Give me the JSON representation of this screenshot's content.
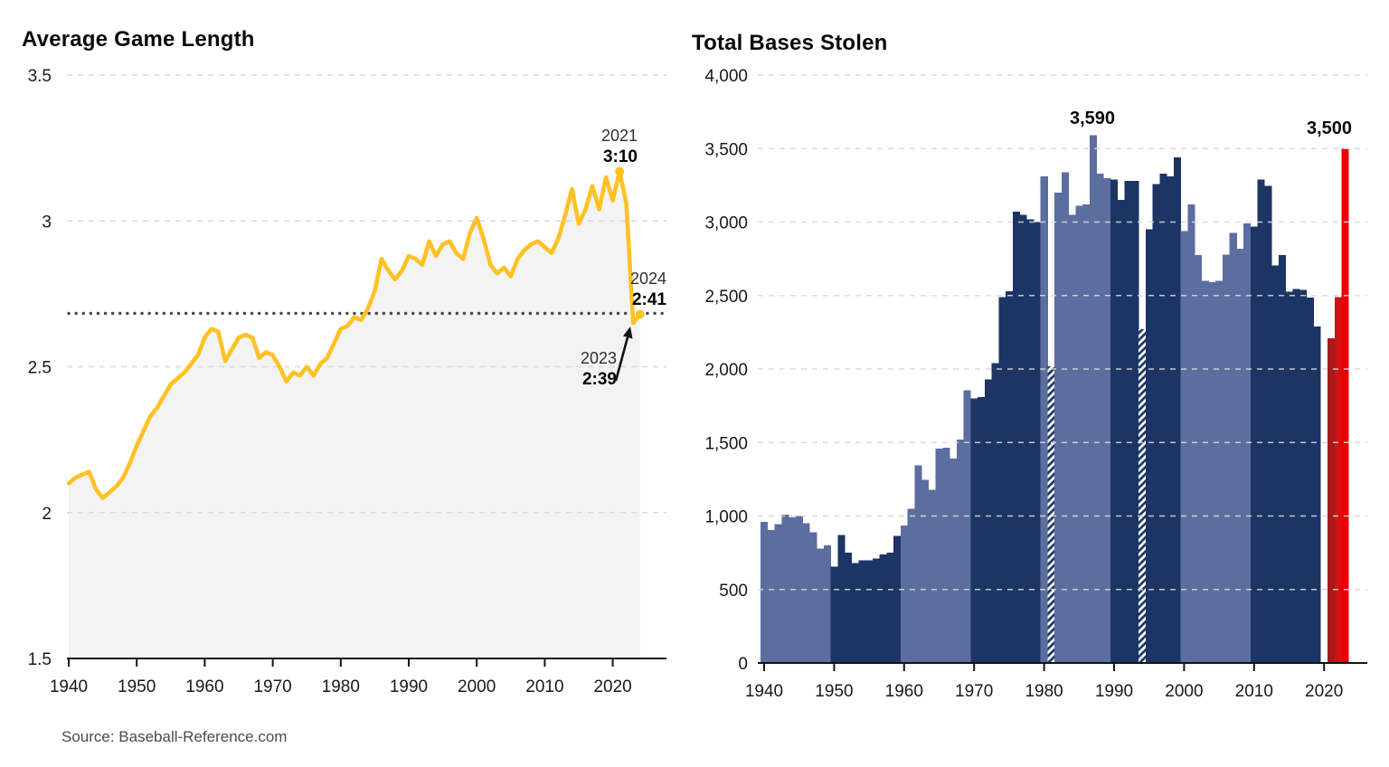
{
  "page": {
    "source": "Source: Baseball-Reference.com",
    "background": "#ffffff",
    "grid_color": "#d9d9d9",
    "axis_color": "#141414",
    "tick_label_color": "#191919"
  },
  "chart_data": [
    {
      "type": "line",
      "title": "Average Game Length",
      "unit": "hours",
      "ylim": [
        1.5,
        3.5
      ],
      "x": [
        1940,
        1941,
        1942,
        1943,
        1944,
        1945,
        1946,
        1947,
        1948,
        1949,
        1950,
        1951,
        1952,
        1953,
        1954,
        1955,
        1956,
        1957,
        1958,
        1959,
        1960,
        1961,
        1962,
        1963,
        1964,
        1965,
        1966,
        1967,
        1968,
        1969,
        1970,
        1971,
        1972,
        1973,
        1974,
        1975,
        1976,
        1977,
        1978,
        1979,
        1980,
        1981,
        1982,
        1983,
        1984,
        1985,
        1986,
        1987,
        1988,
        1989,
        1990,
        1991,
        1992,
        1993,
        1994,
        1995,
        1996,
        1997,
        1998,
        1999,
        2000,
        2001,
        2002,
        2003,
        2004,
        2005,
        2006,
        2007,
        2008,
        2009,
        2010,
        2011,
        2012,
        2013,
        2014,
        2015,
        2016,
        2017,
        2018,
        2019,
        2020,
        2021,
        2022,
        2023,
        2024
      ],
      "y": [
        2.1,
        2.12,
        2.13,
        2.14,
        2.08,
        2.05,
        2.07,
        2.09,
        2.12,
        2.17,
        2.23,
        2.28,
        2.33,
        2.36,
        2.4,
        2.44,
        2.46,
        2.48,
        2.51,
        2.54,
        2.6,
        2.63,
        2.62,
        2.52,
        2.56,
        2.6,
        2.61,
        2.6,
        2.53,
        2.55,
        2.54,
        2.5,
        2.45,
        2.48,
        2.47,
        2.5,
        2.47,
        2.51,
        2.53,
        2.58,
        2.63,
        2.64,
        2.67,
        2.66,
        2.7,
        2.76,
        2.87,
        2.83,
        2.8,
        2.83,
        2.88,
        2.87,
        2.85,
        2.93,
        2.88,
        2.92,
        2.93,
        2.89,
        2.87,
        2.96,
        3.01,
        2.94,
        2.85,
        2.82,
        2.84,
        2.81,
        2.87,
        2.9,
        2.92,
        2.93,
        2.91,
        2.89,
        2.94,
        3.02,
        3.11,
        2.99,
        3.04,
        3.12,
        3.04,
        3.15,
        3.07,
        3.17,
        3.06,
        2.65,
        2.68
      ],
      "y_tick_values": [
        3.5,
        3,
        2.5,
        2,
        1.5
      ],
      "y_tick_labels": [
        "3.5",
        "3",
        "2.5",
        "2",
        "1.5"
      ],
      "x_tick_years": [
        1940,
        1950,
        1960,
        1970,
        1980,
        1990,
        2000,
        2010,
        2020
      ],
      "x_tick_labels": [
        "1940",
        "1950",
        "1960",
        "1970",
        "1980",
        "1990",
        "2000",
        "2010",
        "2020"
      ],
      "reference_line": {
        "value": 2.683,
        "style": "dotted",
        "color": "#4a4a4a"
      },
      "markers": [
        {
          "year": 2021,
          "value": 3.17
        },
        {
          "year": 2024,
          "value": 2.68
        }
      ],
      "annotations": [
        {
          "year_label": "2021",
          "value_label": "3:10"
        },
        {
          "year_label": "2024",
          "value_label": "2:41"
        },
        {
          "year_label": "2023",
          "value_label": "2:39",
          "arrow": true
        }
      ],
      "line_color": "#ffc125",
      "area_color": "#f3f3f3"
    },
    {
      "type": "bar",
      "title": "Total Bases Stolen",
      "ylim": [
        0,
        4000
      ],
      "years": [
        1940,
        1941,
        1942,
        1943,
        1944,
        1945,
        1946,
        1947,
        1948,
        1949,
        1950,
        1951,
        1952,
        1953,
        1954,
        1955,
        1956,
        1957,
        1958,
        1959,
        1960,
        1961,
        1962,
        1963,
        1964,
        1965,
        1966,
        1967,
        1968,
        1969,
        1970,
        1971,
        1972,
        1973,
        1974,
        1975,
        1976,
        1977,
        1978,
        1979,
        1980,
        1981,
        1982,
        1983,
        1984,
        1985,
        1986,
        1987,
        1988,
        1989,
        1990,
        1991,
        1992,
        1993,
        1994,
        1995,
        1996,
        1997,
        1998,
        1999,
        2000,
        2001,
        2002,
        2003,
        2004,
        2005,
        2006,
        2007,
        2008,
        2009,
        2010,
        2011,
        2012,
        2013,
        2014,
        2015,
        2016,
        2017,
        2018,
        2019,
        2020,
        2021,
        2022,
        2023
      ],
      "values": [
        960,
        905,
        945,
        1010,
        990,
        1000,
        950,
        890,
        780,
        800,
        655,
        870,
        750,
        680,
        700,
        700,
        710,
        740,
        750,
        865,
        935,
        1050,
        1345,
        1245,
        1180,
        1460,
        1465,
        1390,
        1520,
        1855,
        1800,
        1810,
        1930,
        2040,
        2490,
        2530,
        3070,
        3050,
        3020,
        3000,
        3310,
        2020,
        3200,
        3340,
        3050,
        3110,
        3120,
        3590,
        3330,
        3300,
        3290,
        3150,
        3280,
        3280,
        2270,
        2950,
        3260,
        3330,
        3310,
        3440,
        2940,
        3120,
        2775,
        2600,
        2590,
        2600,
        2780,
        2925,
        2820,
        2990,
        2970,
        3290,
        3245,
        2705,
        2775,
        2525,
        2545,
        2540,
        2485,
        2290,
        null,
        2210,
        2490,
        3500
      ],
      "hatched_years": [
        1981,
        1994
      ],
      "missing_years": [
        2020
      ],
      "red_years": {
        "2021": "#a81a1c",
        "2022": "#d01215",
        "2023": "#ec0000"
      },
      "decade_colors": {
        "light": "#5b6e9f",
        "dark": "#1c3564"
      },
      "y_tick_values": [
        4000,
        3500,
        3000,
        2500,
        2000,
        1500,
        1000,
        500,
        0
      ],
      "y_tick_labels": [
        "4,000",
        "3,500",
        "3,000",
        "2,500",
        "2,000",
        "1,500",
        "1,000",
        "500",
        "0"
      ],
      "x_tick_years": [
        1940,
        1950,
        1960,
        1970,
        1980,
        1990,
        2000,
        2010,
        2020
      ],
      "x_tick_labels": [
        "1940",
        "1950",
        "1960",
        "1970",
        "1980",
        "1990",
        "2000",
        "2010",
        "2020"
      ],
      "annotations": [
        {
          "text": "3,590",
          "year": 1987
        },
        {
          "text": "3,500",
          "year": 2023
        }
      ]
    }
  ]
}
